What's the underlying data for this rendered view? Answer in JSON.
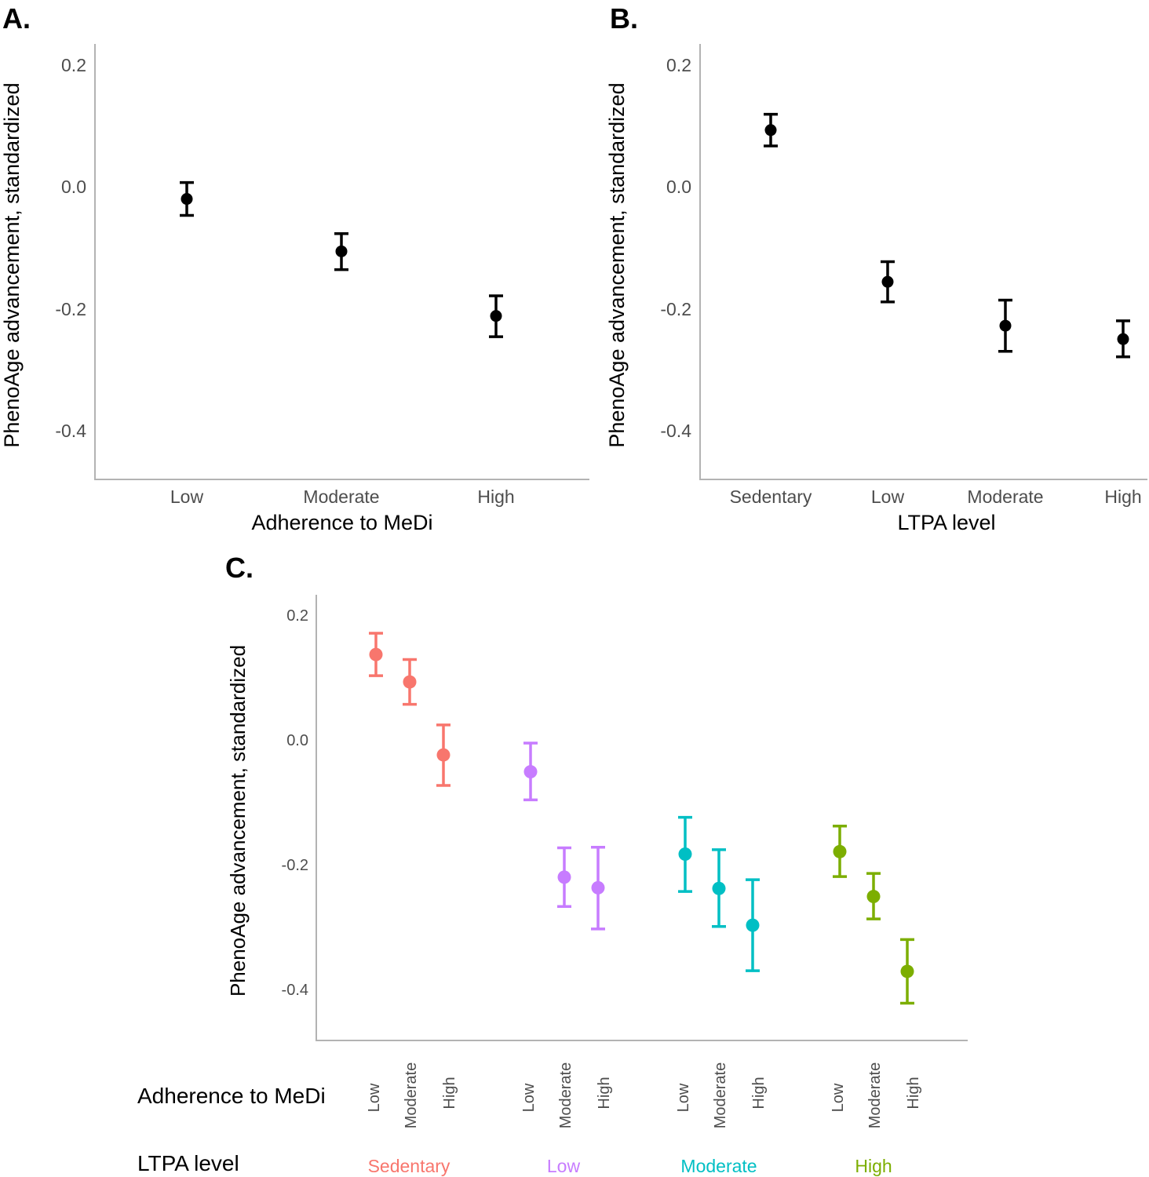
{
  "colors": {
    "Sedentary": "#F8766D",
    "Low": "#C77CFF",
    "Moderate": "#00BFC4",
    "High": "#7CAE00",
    "point_default": "#000000"
  },
  "chart_data": [
    {
      "panel": "A.",
      "type": "scatter",
      "xlabel": "Adherence to MeDi",
      "ylabel": "PhenoAge advancement, standardized",
      "categories": [
        "Low",
        "Moderate",
        "High"
      ],
      "yticks": [
        "0.2",
        "0.0",
        "-0.2",
        "-0.4"
      ],
      "ytick_values": [
        0.2,
        0.0,
        -0.2,
        -0.4
      ],
      "ylim": [
        -0.47,
        0.235
      ],
      "points": [
        {
          "x": "Low",
          "y": -0.02,
          "lo": -0.047,
          "hi": 0.007
        },
        {
          "x": "Moderate",
          "y": -0.106,
          "lo": -0.136,
          "hi": -0.077
        },
        {
          "x": "High",
          "y": -0.212,
          "lo": -0.246,
          "hi": -0.179
        }
      ]
    },
    {
      "panel": "B.",
      "type": "scatter",
      "xlabel": "LTPA level",
      "ylabel": "PhenoAge advancement, standardized",
      "categories": [
        "Sedentary",
        "Low",
        "Moderate",
        "High"
      ],
      "yticks": [
        "0.2",
        "0.0",
        "-0.2",
        "-0.4"
      ],
      "ytick_values": [
        0.2,
        0.0,
        -0.2,
        -0.4
      ],
      "ylim": [
        -0.47,
        0.235
      ],
      "points": [
        {
          "x": "Sedentary",
          "y": 0.093,
          "lo": 0.067,
          "hi": 0.119
        },
        {
          "x": "Low",
          "y": -0.156,
          "lo": -0.189,
          "hi": -0.123
        },
        {
          "x": "Moderate",
          "y": -0.228,
          "lo": -0.27,
          "hi": -0.186
        },
        {
          "x": "High",
          "y": -0.25,
          "lo": -0.279,
          "hi": -0.22
        }
      ]
    },
    {
      "panel": "C.",
      "type": "scatter",
      "ylabel": "PhenoAge advancement, standardized",
      "row_label_medi": "Adherence to MeDi",
      "row_label_ltpa": "LTPA level",
      "yticks": [
        "0.2",
        "0.0",
        "-0.2",
        "-0.4"
      ],
      "ytick_values": [
        0.2,
        0.0,
        -0.2,
        -0.4
      ],
      "ylim": [
        -0.48,
        0.235
      ],
      "groups": [
        {
          "ltpa": "Sedentary",
          "points": [
            {
              "medi": "Low",
              "y": 0.137,
              "lo": 0.103,
              "hi": 0.171
            },
            {
              "medi": "Moderate",
              "y": 0.093,
              "lo": 0.057,
              "hi": 0.129
            },
            {
              "medi": "High",
              "y": -0.024,
              "lo": -0.073,
              "hi": 0.024
            }
          ]
        },
        {
          "ltpa": "Low",
          "points": [
            {
              "medi": "Low",
              "y": -0.051,
              "lo": -0.096,
              "hi": -0.005
            },
            {
              "medi": "Moderate",
              "y": -0.22,
              "lo": -0.267,
              "hi": -0.173
            },
            {
              "medi": "High",
              "y": -0.237,
              "lo": -0.303,
              "hi": -0.172
            }
          ]
        },
        {
          "ltpa": "Moderate",
          "points": [
            {
              "medi": "Low",
              "y": -0.183,
              "lo": -0.243,
              "hi": -0.124
            },
            {
              "medi": "Moderate",
              "y": -0.238,
              "lo": -0.299,
              "hi": -0.176
            },
            {
              "medi": "High",
              "y": -0.297,
              "lo": -0.37,
              "hi": -0.224
            }
          ]
        },
        {
          "ltpa": "High",
          "points": [
            {
              "medi": "Low",
              "y": -0.179,
              "lo": -0.219,
              "hi": -0.138
            },
            {
              "medi": "Moderate",
              "y": -0.251,
              "lo": -0.287,
              "hi": -0.214
            },
            {
              "medi": "High",
              "y": -0.371,
              "lo": -0.422,
              "hi": -0.32
            }
          ]
        }
      ]
    }
  ]
}
